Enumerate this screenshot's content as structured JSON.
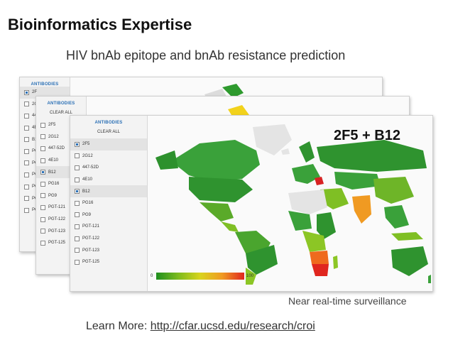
{
  "slide": {
    "title": "Bioinformatics Expertise",
    "subtitle": "HIV bnAb epitope and bnAb resistance prediction",
    "combination_label": "2F5 + B12",
    "surveillance_caption": "Near real-time surveillance",
    "learn_more_prefix": "Learn More: ",
    "learn_more_link": "http://cfar.ucsd.edu/research/croi"
  },
  "panels": [
    {
      "header": "ANTIBODIES",
      "clear_all": "",
      "antibodies": [
        {
          "label": "2F",
          "checked": true
        },
        {
          "label": "2G",
          "checked": false
        },
        {
          "label": "44",
          "checked": false
        },
        {
          "label": "4E",
          "checked": false
        },
        {
          "label": "B1",
          "checked": false
        },
        {
          "label": "PG",
          "checked": false
        },
        {
          "label": "PG",
          "checked": false
        },
        {
          "label": "PG",
          "checked": false
        },
        {
          "label": "PG",
          "checked": false
        },
        {
          "label": "PG",
          "checked": false
        },
        {
          "label": "PG",
          "checked": false
        }
      ]
    },
    {
      "header": "ANTIBODIES",
      "clear_all": "CLEAR ALL",
      "antibodies": [
        {
          "label": "2F5",
          "checked": false
        },
        {
          "label": "2G12",
          "checked": false
        },
        {
          "label": "447-52D",
          "checked": false
        },
        {
          "label": "4E10",
          "checked": false
        },
        {
          "label": "B12",
          "checked": true
        },
        {
          "label": "PG16",
          "checked": false
        },
        {
          "label": "PG9",
          "checked": false
        },
        {
          "label": "PGT-121",
          "checked": false
        },
        {
          "label": "PGT-122",
          "checked": false
        },
        {
          "label": "PGT-123",
          "checked": false
        },
        {
          "label": "PGT-125",
          "checked": false
        }
      ]
    },
    {
      "header": "ANTIBODIES",
      "clear_all": "CLEAR ALL",
      "antibodies": [
        {
          "label": "2F5",
          "checked": true
        },
        {
          "label": "2G12",
          "checked": false
        },
        {
          "label": "447-52D",
          "checked": false
        },
        {
          "label": "4E10",
          "checked": false
        },
        {
          "label": "B12",
          "checked": true
        },
        {
          "label": "PG16",
          "checked": false
        },
        {
          "label": "PG9",
          "checked": false
        },
        {
          "label": "PGT-121",
          "checked": false
        },
        {
          "label": "PGT-122",
          "checked": false
        },
        {
          "label": "PGT-123",
          "checked": false
        },
        {
          "label": "PGT-125",
          "checked": false
        }
      ],
      "scale_min": "0",
      "scale_max": "100"
    }
  ],
  "colors": {
    "resistant_low": "#1f8f1f",
    "resistant_mid": "#d9d41d",
    "resistant_high": "#e0261f",
    "no_data": "#e4e4e4"
  }
}
